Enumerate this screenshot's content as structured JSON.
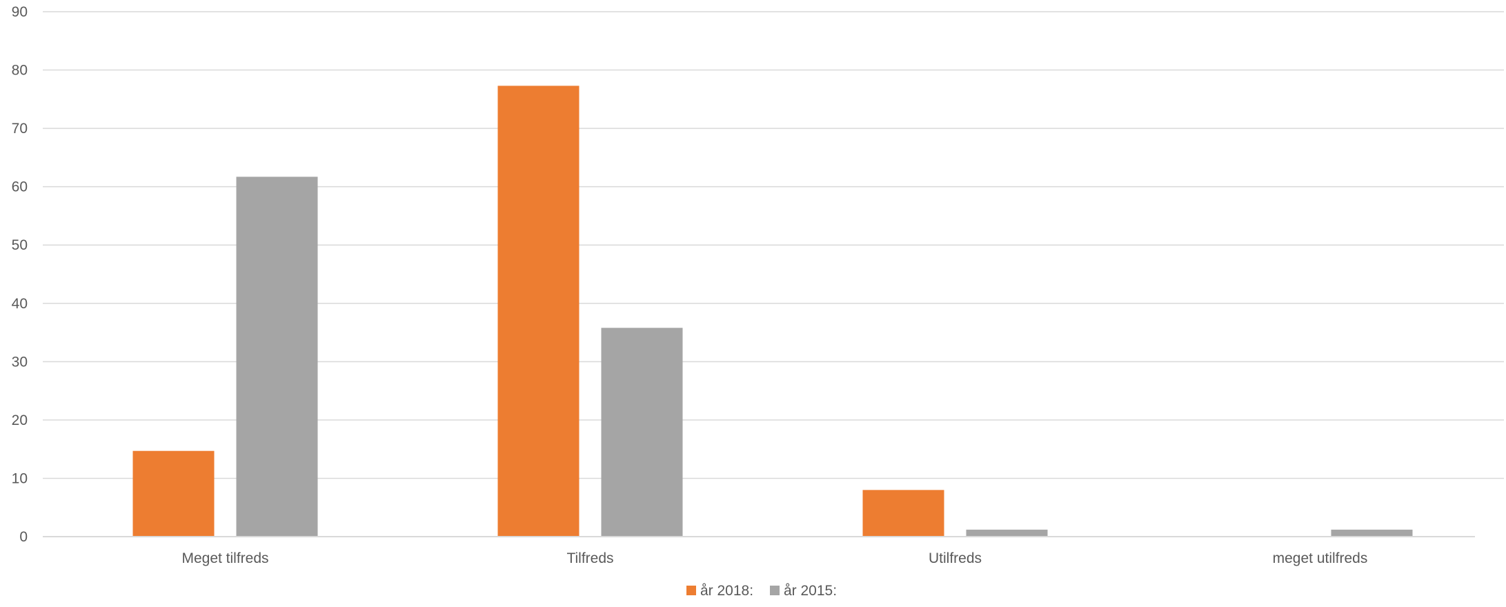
{
  "chart_data": {
    "type": "bar",
    "title": "",
    "xlabel": "",
    "ylabel": "",
    "categories": [
      "Meget tilfreds",
      "Tilfreds",
      "Utilfreds",
      "meget utilfreds"
    ],
    "series": [
      {
        "name": "år 2018:",
        "color": "#ED7D31",
        "values": [
          14.7,
          77.3,
          8.0,
          0
        ]
      },
      {
        "name": "år 2015:",
        "color": "#A5A5A5",
        "values": [
          61.7,
          35.8,
          1.2,
          1.2
        ]
      }
    ],
    "ylim": [
      0,
      90
    ],
    "yticks": [
      "0",
      "10",
      "20",
      "30",
      "40",
      "50",
      "60",
      "70",
      "80",
      "90"
    ],
    "grid": true,
    "legend_position": "bottom-center"
  }
}
